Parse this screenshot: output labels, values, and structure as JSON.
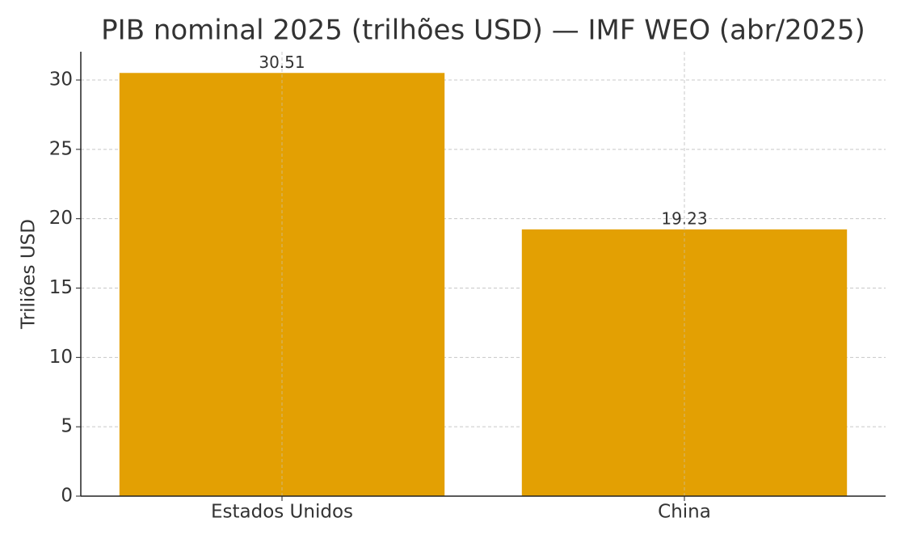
{
  "chart_data": {
    "type": "bar",
    "title": "PIB nominal 2025 (trilhões USD) — IMF WEO (abr/2025)",
    "y_label": "Triliões USD",
    "categories": [
      "Estados Unidos",
      "China"
    ],
    "values": [
      30.51,
      19.23
    ],
    "color": "#e3a003",
    "ylim": [
      0,
      32.04
    ],
    "yticks": [
      0,
      5,
      10,
      15,
      20,
      25,
      30
    ],
    "grid": true
  }
}
